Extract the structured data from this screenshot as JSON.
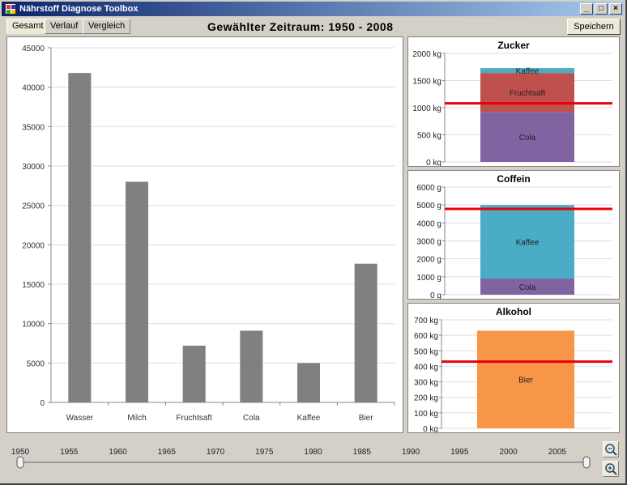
{
  "window": {
    "title": "Nährstoff Diagnose Toolbox",
    "buttons": {
      "minimize": "_",
      "maximize": "□",
      "close": "×"
    }
  },
  "tabs": [
    {
      "label": "Gesamt",
      "active": true
    },
    {
      "label": "Verlauf",
      "active": false
    },
    {
      "label": "Vergleich",
      "active": false
    }
  ],
  "range_title": "Gewählter Zeitraum: 1950 - 2008",
  "save_label": "Speichern",
  "colors": {
    "bar": "#808080",
    "threshold": "#e8000b",
    "kaffee": "#4bacc6",
    "fruchtsaft": "#c0504d",
    "cola": "#8064a2",
    "bier": "#f79646"
  },
  "chart_data": [
    {
      "type": "bar",
      "categories": [
        "Wasser",
        "Milch",
        "Fruchtsaft",
        "Cola",
        "Kaffee",
        "Bier"
      ],
      "values": [
        41800,
        28000,
        7200,
        9100,
        5000,
        17600
      ],
      "ylim": [
        0,
        45000
      ],
      "yticks": [
        "0",
        "5000",
        "10000",
        "15000",
        "20000",
        "25000",
        "30000",
        "35000",
        "40000",
        "45000"
      ],
      "title": "",
      "xlabel": "",
      "ylabel": "",
      "grid": true
    },
    {
      "type": "bar",
      "stacked": true,
      "title": "Zucker",
      "categories": [
        ""
      ],
      "series": [
        {
          "name": "Cola",
          "values": [
            920
          ]
        },
        {
          "name": "Fruchtsaft",
          "values": [
            720
          ]
        },
        {
          "name": "Kaffee",
          "values": [
            90
          ]
        }
      ],
      "threshold": 1080,
      "ylim": [
        0,
        2000
      ],
      "yticks": [
        "0 kg",
        "500 kg",
        "1000 kg",
        "1500 kg",
        "2000 kg"
      ],
      "grid": true
    },
    {
      "type": "bar",
      "stacked": true,
      "title": "Coffein",
      "categories": [
        ""
      ],
      "series": [
        {
          "name": "Cola",
          "values": [
            900
          ]
        },
        {
          "name": "Kaffee",
          "values": [
            4100
          ]
        }
      ],
      "threshold": 4780,
      "ylim": [
        0,
        6000
      ],
      "yticks": [
        "0 g",
        "1000 g",
        "2000 g",
        "3000 g",
        "4000 g",
        "5000 g",
        "6000 g"
      ],
      "grid": true
    },
    {
      "type": "bar",
      "stacked": true,
      "title": "Alkohol",
      "categories": [
        ""
      ],
      "series": [
        {
          "name": "Bier",
          "values": [
            630
          ]
        }
      ],
      "threshold": 430,
      "ylim": [
        0,
        700
      ],
      "yticks": [
        "0 kg",
        "100 kg",
        "200 kg",
        "300 kg",
        "400 kg",
        "500 kg",
        "600 kg",
        "700 kg"
      ],
      "grid": true
    }
  ],
  "timeline": {
    "years": [
      1950,
      1955,
      1960,
      1965,
      1970,
      1975,
      1980,
      1985,
      1990,
      1995,
      2000,
      2005
    ],
    "min": 1950,
    "max": 2008,
    "selected_start": 1950,
    "selected_end": 2008
  },
  "zoom": {
    "zoom_out_icon": "magnifier-minus-icon",
    "zoom_in_icon": "magnifier-plus-icon"
  }
}
